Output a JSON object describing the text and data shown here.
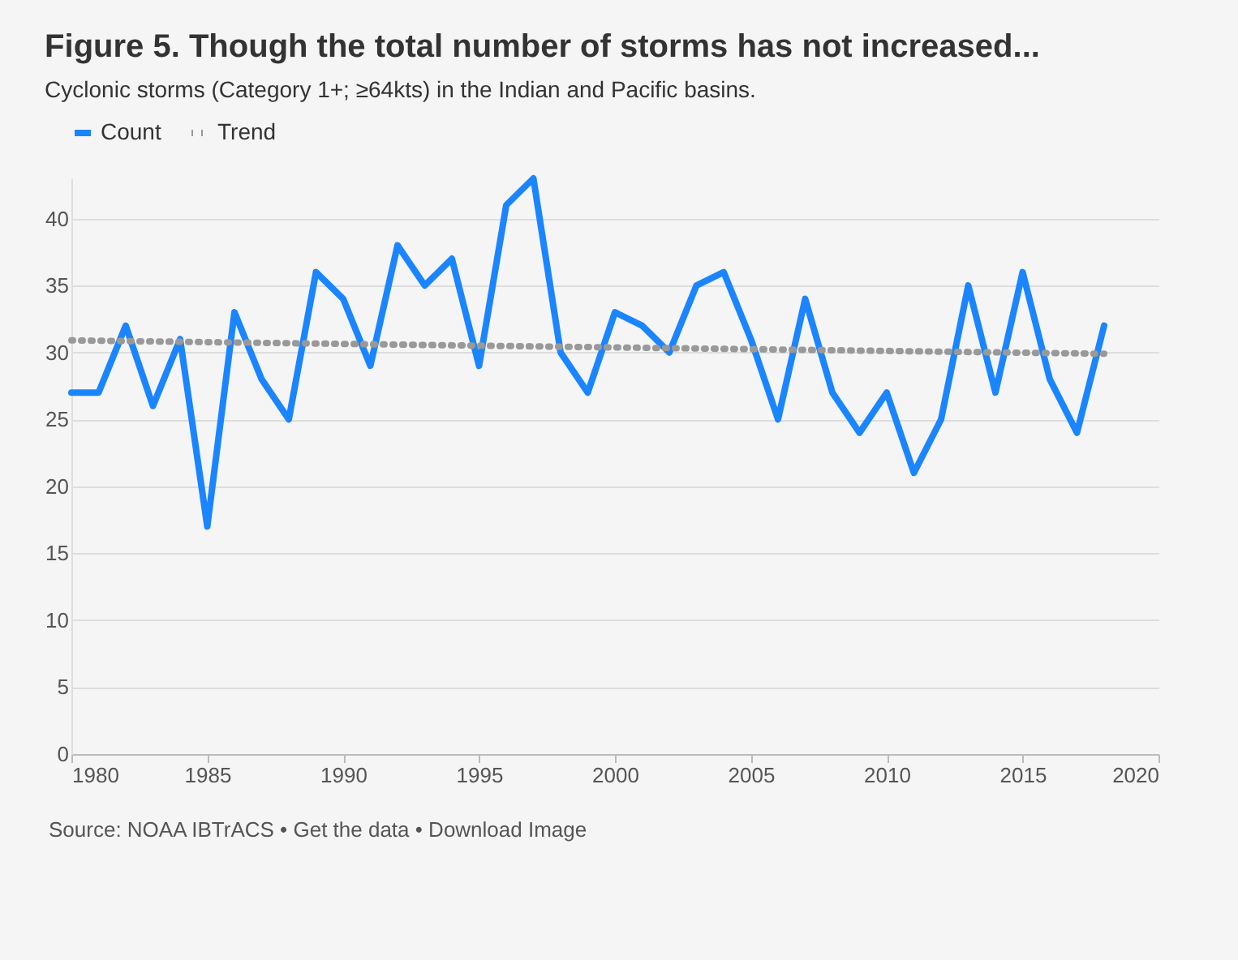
{
  "chart_data": {
    "type": "line",
    "title": "Figure 5. Though the total number of storms has not increased...",
    "subtitle": "Cyclonic storms (Category 1+; ≥64kts) in the Indian and Pacific basins.",
    "x": [
      1980,
      1981,
      1982,
      1983,
      1984,
      1985,
      1986,
      1987,
      1988,
      1989,
      1990,
      1991,
      1992,
      1993,
      1994,
      1995,
      1996,
      1997,
      1998,
      1999,
      2000,
      2001,
      2002,
      2003,
      2004,
      2005,
      2006,
      2007,
      2008,
      2009,
      2010,
      2011,
      2012,
      2013,
      2014,
      2015,
      2016,
      2017,
      2018
    ],
    "series": [
      {
        "name": "Count",
        "color": "#1a85ff",
        "line_style": "solid",
        "values": [
          27,
          27,
          32,
          26,
          31,
          17,
          33,
          28,
          25,
          36,
          34,
          29,
          38,
          35,
          37,
          29,
          41,
          43,
          30,
          27,
          33,
          32,
          30,
          35,
          36,
          31,
          25,
          34,
          27,
          24,
          27,
          21,
          25,
          35,
          27,
          36,
          28,
          24,
          32
        ]
      },
      {
        "name": "Trend",
        "color": "#999999",
        "line_style": "dotted",
        "x": [
          1980,
          2018
        ],
        "values": [
          30.9,
          29.9
        ]
      }
    ],
    "xlim": [
      1980,
      2020
    ],
    "xticks": [
      1980,
      1985,
      1990,
      1995,
      2000,
      2005,
      2010,
      2015,
      2020
    ],
    "ylim": [
      0,
      43
    ],
    "yticks": [
      0,
      5,
      10,
      15,
      20,
      25,
      30,
      35,
      40
    ],
    "grid": "y",
    "legend": "top left",
    "annotations": [
      "Source: NOAA IBTrACS • Get the data • Download Image"
    ]
  }
}
